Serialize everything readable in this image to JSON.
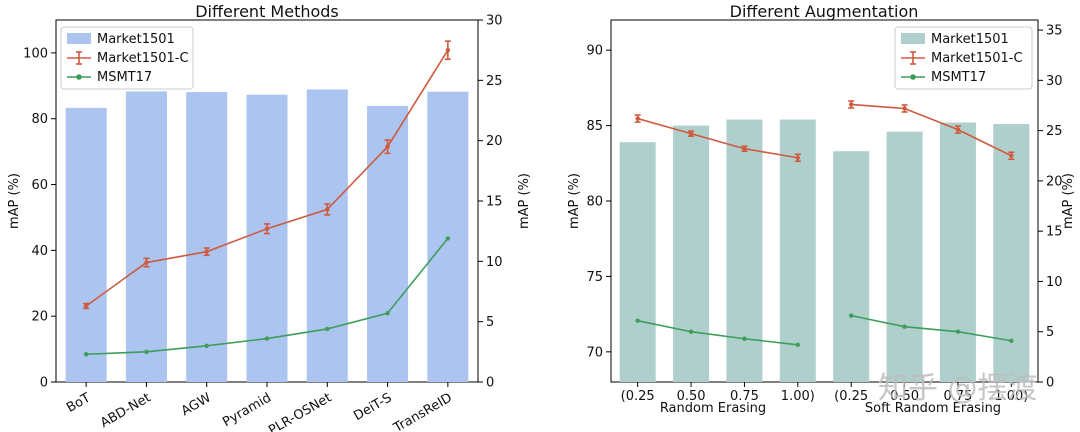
{
  "chart_data": [
    {
      "type": "bar",
      "title": "Different Methods",
      "categories": [
        "BoT",
        "ABD-Net",
        "AGW",
        "Pyramid",
        "PLR-OSNet",
        "DeiT-S",
        "TransReID"
      ],
      "xlabel": "",
      "ylabel": "mAP (%)",
      "ylabel_right": "mAP (%)",
      "ylim": [
        0,
        110
      ],
      "yticks": [
        0,
        20,
        40,
        60,
        80,
        100
      ],
      "ylim_right": [
        0,
        30
      ],
      "yticks_right": [
        0,
        5,
        10,
        15,
        20,
        25,
        30
      ],
      "legend_position": "top-left",
      "series": [
        {
          "name": "Market1501",
          "kind": "bar",
          "axis": "left",
          "values": [
            83.3,
            88.3,
            88.1,
            87.3,
            88.9,
            83.9,
            88.2
          ],
          "color": "#abc4f0"
        },
        {
          "name": "Market1501-C",
          "kind": "line-errorbar",
          "axis": "right",
          "values": [
            6.3,
            9.9,
            10.8,
            12.7,
            14.3,
            19.5,
            27.5
          ],
          "errors": [
            0.2,
            0.35,
            0.3,
            0.4,
            0.45,
            0.55,
            0.75
          ],
          "color": "#cf5a3f"
        },
        {
          "name": "MSMT17",
          "kind": "line",
          "axis": "right",
          "values": [
            2.3,
            2.5,
            3.0,
            3.6,
            4.4,
            5.7,
            11.9
          ],
          "color": "#3d9d59"
        }
      ]
    },
    {
      "type": "bar",
      "title": "Different Augmentation",
      "categories": [
        "(0.25",
        "0.50",
        "0.75",
        "1.00)",
        "(0.25",
        "0.50",
        "0.75",
        "1.00)"
      ],
      "group_labels": [
        "Random Erasing",
        "Soft Random Erasing"
      ],
      "xlabel": "",
      "ylabel": "mAP (%)",
      "ylabel_right": "mAP (%)",
      "ylim": [
        68,
        92
      ],
      "yticks": [
        70,
        75,
        80,
        85,
        90
      ],
      "ylim_right": [
        0,
        36
      ],
      "yticks_right": [
        0,
        5,
        10,
        15,
        20,
        25,
        30,
        35
      ],
      "legend_position": "top-right",
      "series": [
        {
          "name": "Market1501",
          "kind": "bar",
          "axis": "left",
          "values": [
            83.9,
            85.0,
            85.4,
            85.4,
            83.3,
            84.6,
            85.2,
            85.1
          ],
          "color": "#afcfcd"
        },
        {
          "name": "Market1501-C",
          "kind": "line-errorbar",
          "axis": "right",
          "values": [
            26.2,
            24.7,
            23.2,
            22.3,
            27.6,
            27.2,
            25.1,
            22.5
          ],
          "errors": [
            0.35,
            0.25,
            0.25,
            0.35,
            0.35,
            0.35,
            0.35,
            0.35
          ],
          "color": "#cf5a3f"
        },
        {
          "name": "MSMT17",
          "kind": "line",
          "axis": "right",
          "values": [
            6.1,
            5.0,
            4.3,
            3.7,
            6.6,
            5.5,
            5.0,
            4.1
          ],
          "color": "#3d9d59"
        }
      ]
    }
  ],
  "watermark": {
    "text": "知乎 @摆渡"
  }
}
